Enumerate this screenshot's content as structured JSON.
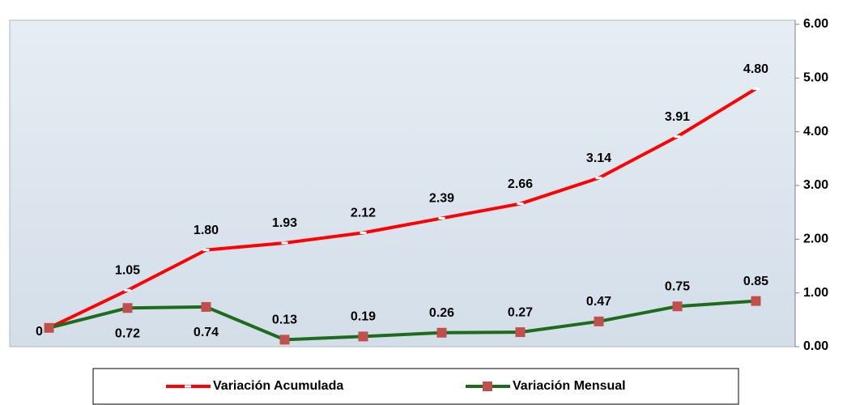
{
  "chart_data": {
    "type": "line",
    "categories": [
      null,
      null,
      null,
      null,
      null,
      null,
      null,
      null,
      null,
      null
    ],
    "series": [
      {
        "name": "Variación Acumulada",
        "color": "#ff0000",
        "marker_color": "#ffffff",
        "values": [
          0.35,
          1.05,
          1.8,
          1.93,
          2.12,
          2.39,
          2.66,
          3.14,
          3.91,
          4.8
        ],
        "value_labels": [
          null,
          "1.05",
          "1.80",
          "1.93",
          "2.12",
          "2.39",
          "2.66",
          "3.14",
          "3.91",
          "4.80"
        ]
      },
      {
        "name": "Variación Mensual",
        "color": "#1e6b1e",
        "marker_color": "#c0504d",
        "values": [
          0.35,
          0.72,
          0.74,
          0.13,
          0.19,
          0.26,
          0.27,
          0.47,
          0.75,
          0.85
        ],
        "value_labels": [
          null,
          "0.72",
          "0.74",
          "0.13",
          "0.19",
          "0.26",
          "0.27",
          "0.47",
          "0.75",
          "0.85"
        ]
      }
    ],
    "annotation": "0",
    "ylim": [
      0,
      6
    ],
    "yticks": [
      {
        "value": 0,
        "label": "0.00"
      },
      {
        "value": 1,
        "label": "1.00"
      },
      {
        "value": 2,
        "label": "2.00"
      },
      {
        "value": 3,
        "label": "3.00"
      },
      {
        "value": 4,
        "label": "4.00"
      },
      {
        "value": 5,
        "label": "5.00"
      },
      {
        "value": 6,
        "label": "6.00"
      }
    ],
    "y_axis_side": "right",
    "grid": false,
    "legend": "bottom"
  }
}
